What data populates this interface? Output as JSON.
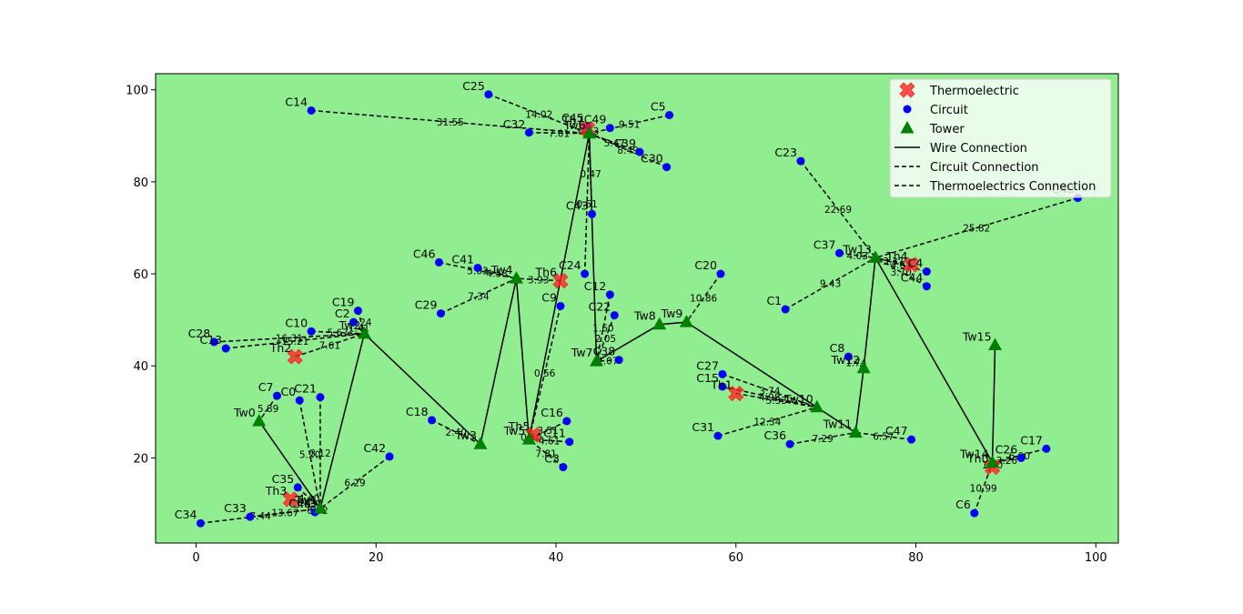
{
  "chart_data": {
    "type": "scatter",
    "title": "",
    "xlabel": "",
    "ylabel": "",
    "xlim": [
      -4.5,
      102.5
    ],
    "ylim": [
      1.5,
      103.5
    ],
    "x_ticks": [
      0,
      20,
      40,
      60,
      80,
      100
    ],
    "y_ticks": [
      20,
      40,
      60,
      80,
      100
    ],
    "grid": false,
    "legend_position": "top-right",
    "colors": {
      "plot_background": "#90ee90",
      "thermoelectric": "#ff2020",
      "circuit": "#0000ff",
      "tower": "#008000",
      "line": "#000000"
    },
    "legend": [
      {
        "label": "Thermoelectric",
        "marker": "x-icon"
      },
      {
        "label": "Circuit",
        "marker": "dot-icon"
      },
      {
        "label": "Tower",
        "marker": "triangle-icon"
      },
      {
        "label": "Wire Connection",
        "marker": "solid-line-icon"
      },
      {
        "label": "Circuit Connection",
        "marker": "dashed-line-icon"
      },
      {
        "label": "Thermoelectrics Connection",
        "marker": "dashed-line-icon"
      }
    ],
    "thermoelectrics": [
      {
        "label": "Th0",
        "x": 88.5,
        "y": 18
      },
      {
        "label": "Th1",
        "x": 60,
        "y": 34
      },
      {
        "label": "Th2",
        "x": 11,
        "y": 42
      },
      {
        "label": "Th3",
        "x": 10.5,
        "y": 11
      },
      {
        "label": "Th4",
        "x": 79.5,
        "y": 62
      },
      {
        "label": "Th5",
        "x": 37.5,
        "y": 25
      },
      {
        "label": "Th6",
        "x": 40.5,
        "y": 58.5
      },
      {
        "label": "Th7",
        "x": 43.5,
        "y": 91.5
      }
    ],
    "circuits": [
      {
        "label": "C0",
        "x": 11.5,
        "y": 32.5
      },
      {
        "label": "C1",
        "x": 65.5,
        "y": 52.3
      },
      {
        "label": "C2",
        "x": 17.5,
        "y": 49.5
      },
      {
        "label": "C3",
        "x": 40.8,
        "y": 18
      },
      {
        "label": "C4",
        "x": 81.2,
        "y": 60.5
      },
      {
        "label": "C5",
        "x": 52.6,
        "y": 94.5
      },
      {
        "label": "C6",
        "x": 86.5,
        "y": 8
      },
      {
        "label": "C7",
        "x": 9,
        "y": 33.5
      },
      {
        "label": "C8",
        "x": 72.5,
        "y": 42
      },
      {
        "label": "C9",
        "x": 40.5,
        "y": 53
      },
      {
        "label": "C10",
        "x": 12.8,
        "y": 47.5
      },
      {
        "label": "C11",
        "x": 41.5,
        "y": 23.5
      },
      {
        "label": "C12",
        "x": 46,
        "y": 55.5
      },
      {
        "label": "C13",
        "x": 3.3,
        "y": 43.8
      },
      {
        "label": "C14",
        "x": 12.8,
        "y": 95.5
      },
      {
        "label": "C15",
        "x": 58.5,
        "y": 35.5
      },
      {
        "label": "C16",
        "x": 41.2,
        "y": 28
      },
      {
        "label": "C17",
        "x": 94.5,
        "y": 22
      },
      {
        "label": "C18",
        "x": 26.2,
        "y": 28.2
      },
      {
        "label": "C19",
        "x": 18,
        "y": 52
      },
      {
        "label": "C20",
        "x": 58.3,
        "y": 60
      },
      {
        "label": "C21",
        "x": 13.8,
        "y": 33.2
      },
      {
        "label": "C22",
        "x": 46.5,
        "y": 51
      },
      {
        "label": "C23",
        "x": 67.2,
        "y": 84.5
      },
      {
        "label": "C24",
        "x": 43.2,
        "y": 60
      },
      {
        "label": "C25",
        "x": 32.5,
        "y": 99
      },
      {
        "label": "C26",
        "x": 91.7,
        "y": 20
      },
      {
        "label": "C27",
        "x": 58.5,
        "y": 38.2
      },
      {
        "label": "C28",
        "x": 2,
        "y": 45.2
      },
      {
        "label": "C29",
        "x": 27.2,
        "y": 51.4
      },
      {
        "label": "C30",
        "x": 52.3,
        "y": 83.2
      },
      {
        "label": "C31",
        "x": 58,
        "y": 24.8
      },
      {
        "label": "C32",
        "x": 37,
        "y": 90.7
      },
      {
        "label": "C33",
        "x": 6,
        "y": 7.2
      },
      {
        "label": "C34",
        "x": 0.5,
        "y": 5.8
      },
      {
        "label": "C35",
        "x": 11.3,
        "y": 13.6
      },
      {
        "label": "C36",
        "x": 66,
        "y": 23
      },
      {
        "label": "C37",
        "x": 71.5,
        "y": 64.5
      },
      {
        "label": "C38",
        "x": 47,
        "y": 41.3
      },
      {
        "label": "C39",
        "x": 49.3,
        "y": 86.5
      },
      {
        "label": "C40",
        "x": 98,
        "y": 76.5
      },
      {
        "label": "C41",
        "x": 31.3,
        "y": 61.3
      },
      {
        "label": "C42",
        "x": 21.5,
        "y": 20.3
      },
      {
        "label": "C43",
        "x": 44,
        "y": 73
      },
      {
        "label": "C44",
        "x": 81.2,
        "y": 57.3
      },
      {
        "label": "C45",
        "x": 43.5,
        "y": 92
      },
      {
        "label": "C46",
        "x": 27,
        "y": 62.5
      },
      {
        "label": "C47",
        "x": 79.5,
        "y": 24
      },
      {
        "label": "C48",
        "x": 13.2,
        "y": 8.2
      },
      {
        "label": "C49",
        "x": 46,
        "y": 91.7
      }
    ],
    "towers": [
      {
        "label": "Tw0",
        "x": 7,
        "y": 28
      },
      {
        "label": "Tw1",
        "x": 13.8,
        "y": 9
      },
      {
        "label": "Tw2",
        "x": 18.7,
        "y": 47
      },
      {
        "label": "Tw3",
        "x": 31.6,
        "y": 23
      },
      {
        "label": "Tw4",
        "x": 35.6,
        "y": 59
      },
      {
        "label": "Tw5",
        "x": 37,
        "y": 24
      },
      {
        "label": "Tw6",
        "x": 43.7,
        "y": 90.5
      },
      {
        "label": "Tw7",
        "x": 44.5,
        "y": 41
      },
      {
        "label": "Tw8",
        "x": 51.5,
        "y": 49
      },
      {
        "label": "Tw9",
        "x": 54.5,
        "y": 49.5
      },
      {
        "label": "Tw10",
        "x": 69,
        "y": 31
      },
      {
        "label": "Tw11",
        "x": 73.3,
        "y": 25.5
      },
      {
        "label": "Tw12",
        "x": 74.2,
        "y": 39.5
      },
      {
        "label": "Tw13",
        "x": 75.5,
        "y": 63.5
      },
      {
        "label": "Tw14",
        "x": 88.5,
        "y": 19
      },
      {
        "label": "Tw15",
        "x": 88.8,
        "y": 44.5
      }
    ],
    "wire_connections": [
      [
        "Tw0",
        "Tw1"
      ],
      [
        "Tw1",
        "Tw2"
      ],
      [
        "Tw2",
        "Tw3"
      ],
      [
        "Tw3",
        "Tw4"
      ],
      [
        "Tw4",
        "Tw5"
      ],
      [
        "Tw5",
        "Tw6"
      ],
      [
        "Tw6",
        "Tw7"
      ],
      [
        "Tw7",
        "Tw8"
      ],
      [
        "Tw8",
        "Tw9"
      ],
      [
        "Tw9",
        "Tw10"
      ],
      [
        "Tw10",
        "Tw11"
      ],
      [
        "Tw11",
        "Tw12"
      ],
      [
        "Tw12",
        "Tw13"
      ],
      [
        "Tw13",
        "Tw14"
      ],
      [
        "Tw14",
        "Tw15"
      ]
    ],
    "circuit_connections": [
      {
        "from": "C25",
        "to": "Tw6",
        "label": "14.02"
      },
      {
        "from": "C14",
        "to": "Tw6",
        "label": "31.55"
      },
      {
        "from": "C32",
        "to": "Tw6",
        "label": "7.01"
      },
      {
        "from": "C5",
        "to": "Tw6",
        "label": "9.51"
      },
      {
        "from": "C39",
        "to": "Tw6",
        "label": "5.47"
      },
      {
        "from": "C30",
        "to": "Tw6",
        "label": "8.49"
      },
      {
        "from": "C43",
        "to": "Tw6",
        "label": "0.47"
      },
      {
        "from": "C24",
        "to": "Tw6",
        "label": "0.51"
      },
      {
        "from": "C12",
        "to": "Tw7",
        "label": "1.60"
      },
      {
        "from": "C22",
        "to": "Tw7",
        "label": "2.05"
      },
      {
        "from": "C38",
        "to": "Tw7",
        "label": "2.07"
      },
      {
        "from": "C46",
        "to": "Tw4",
        "label": "5.03"
      },
      {
        "from": "C41",
        "to": "Tw4",
        "label": "4.53"
      },
      {
        "from": "C29",
        "to": "Tw4",
        "label": "7.34"
      },
      {
        "from": "C9",
        "to": "Tw5",
        "label": "0.56"
      },
      {
        "from": "C16",
        "to": "Tw5",
        "label": "3.51"
      },
      {
        "from": "C11",
        "to": "Tw5",
        "label": "4.61"
      },
      {
        "from": "C3",
        "to": "Tw5",
        "label": "7.81"
      },
      {
        "from": "C18",
        "to": "Tw3",
        "label": "2.40"
      },
      {
        "from": "C19",
        "to": "Tw2",
        "label": "1.24"
      },
      {
        "from": "C2",
        "to": "Tw2",
        "label": "1.41"
      },
      {
        "from": "C10",
        "to": "Tw2",
        "label": "5.67"
      },
      {
        "from": "C28",
        "to": "Tw2",
        "label": "16.31"
      },
      {
        "from": "C13",
        "to": "Tw2",
        "label": "15.21"
      },
      {
        "from": "C0",
        "to": "Tw1",
        "label": "5.20"
      },
      {
        "from": "C21",
        "to": "Tw1",
        "label": "3.12"
      },
      {
        "from": "C42",
        "to": "Tw1",
        "label": "6.29"
      },
      {
        "from": "C7",
        "to": "Tw0",
        "label": "5.89"
      },
      {
        "from": "C35",
        "to": "Tw1",
        "label": "4.40"
      },
      {
        "from": "C33",
        "to": "Tw1",
        "label": "13.67"
      },
      {
        "from": "C34",
        "to": "Tw1",
        "label": "7.44"
      },
      {
        "from": "C48",
        "to": "Tw1",
        "label": "0.82"
      },
      {
        "from": "C20",
        "to": "Tw9",
        "label": "10.86"
      },
      {
        "from": "C27",
        "to": "Tw10",
        "label": "3.74"
      },
      {
        "from": "C15",
        "to": "Tw10",
        "label": "4.98"
      },
      {
        "from": "C31",
        "to": "Tw10",
        "label": "12.34"
      },
      {
        "from": "C36",
        "to": "Tw11",
        "label": "7.29"
      },
      {
        "from": "C47",
        "to": "Tw11",
        "label": "6.57"
      },
      {
        "from": "C8",
        "to": "Tw12",
        "label": "1.74"
      },
      {
        "from": "C1",
        "to": "Tw13",
        "label": "9.43"
      },
      {
        "from": "C37",
        "to": "Tw13",
        "label": "4.03"
      },
      {
        "from": "C23",
        "to": "Tw13",
        "label": "22.69"
      },
      {
        "from": "C40",
        "to": "Tw13",
        "label": "25.82"
      },
      {
        "from": "C4",
        "to": "Tw13",
        "label": "4.67"
      },
      {
        "from": "C44",
        "to": "Tw13",
        "label": "3.70"
      },
      {
        "from": "C6",
        "to": "Tw14",
        "label": "10.99"
      },
      {
        "from": "C26",
        "to": "Tw14",
        "label": "3.26"
      },
      {
        "from": "C17",
        "to": "Tw14",
        "label": "6.00"
      }
    ],
    "thermoelectric_connections": [
      {
        "from": "Th0",
        "to": "Tw14",
        "label": "1.00"
      },
      {
        "from": "Th1",
        "to": "Tw10",
        "label": "5.53"
      },
      {
        "from": "Th2",
        "to": "Tw2",
        "label": "7.61"
      },
      {
        "from": "Th3",
        "to": "Tw1",
        "label": "3.03"
      },
      {
        "from": "Th4",
        "to": "Tw13",
        "label": "3.37"
      },
      {
        "from": "Th5",
        "to": "Tw5",
        "label": "0.60"
      },
      {
        "from": "Th6",
        "to": "Tw4",
        "label": "3.93"
      },
      {
        "from": "Th7",
        "to": "Tw6",
        "label": "0.73"
      }
    ]
  }
}
